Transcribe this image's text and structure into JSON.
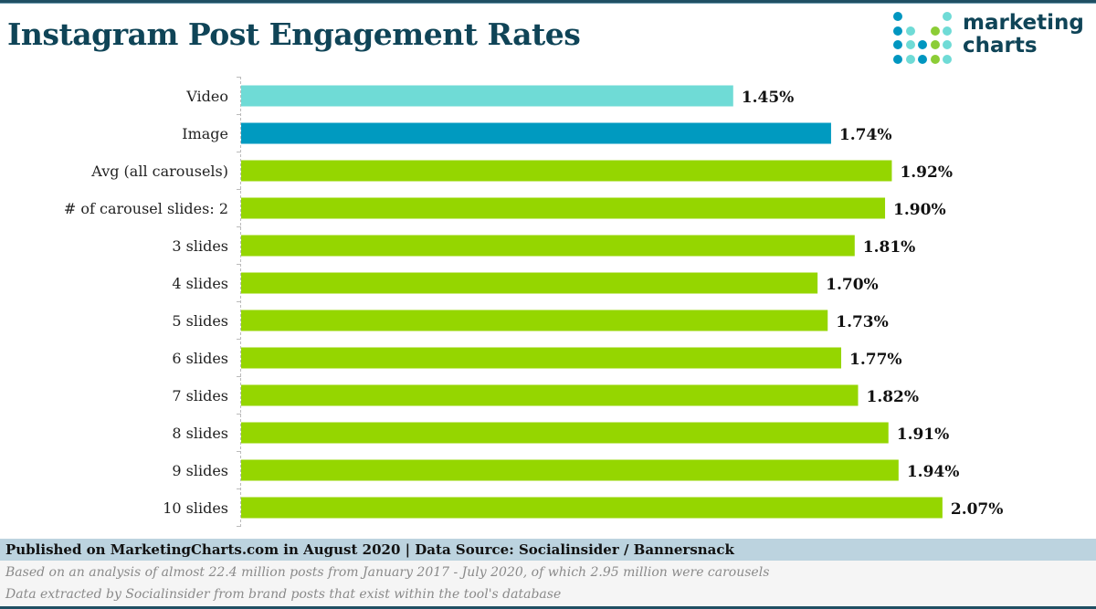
{
  "header": {
    "title": "Instagram Post Engagement Rates"
  },
  "logo": {
    "line1": "marketing",
    "line2": "charts",
    "dot_colors": {
      "dark": "#0096c0",
      "light": "#6fdbd6",
      "green": "#8ccd36"
    }
  },
  "chart_data": {
    "type": "bar",
    "orientation": "horizontal",
    "title": "Instagram Post Engagement Rates",
    "xlabel": "",
    "ylabel": "",
    "xlim": [
      0,
      2.07
    ],
    "grid": false,
    "legend": "none",
    "categories": [
      "Video",
      "Image",
      "Avg (all carousels)",
      "# of carousel slides: 2",
      "3 slides",
      "4 slides",
      "5 slides",
      "6 slides",
      "7 slides",
      "8 slides",
      "9 slides",
      "10 slides"
    ],
    "values": [
      1.45,
      1.74,
      1.92,
      1.9,
      1.81,
      1.7,
      1.73,
      1.77,
      1.82,
      1.91,
      1.94,
      2.07
    ],
    "value_labels": [
      "1.45%",
      "1.74%",
      "1.92%",
      "1.90%",
      "1.81%",
      "1.70%",
      "1.73%",
      "1.77%",
      "1.82%",
      "1.91%",
      "1.94%",
      "2.07%"
    ],
    "bar_colors": [
      "#6fdbd6",
      "#009ac0",
      "#95d600",
      "#95d600",
      "#95d600",
      "#95d600",
      "#95d600",
      "#95d600",
      "#95d600",
      "#95d600",
      "#95d600",
      "#95d600"
    ],
    "unit": "%"
  },
  "footer": {
    "published": "Published on MarketingCharts.com in August 2020 | Data Source: Socialinsider / Bannersnack",
    "note1": "Based on an analysis of almost 22.4 million posts from January 2017 - July 2020, of which 2.95 million were carousels",
    "note2": "Data extracted by Socialinsider from brand posts that exist within the tool's database"
  }
}
